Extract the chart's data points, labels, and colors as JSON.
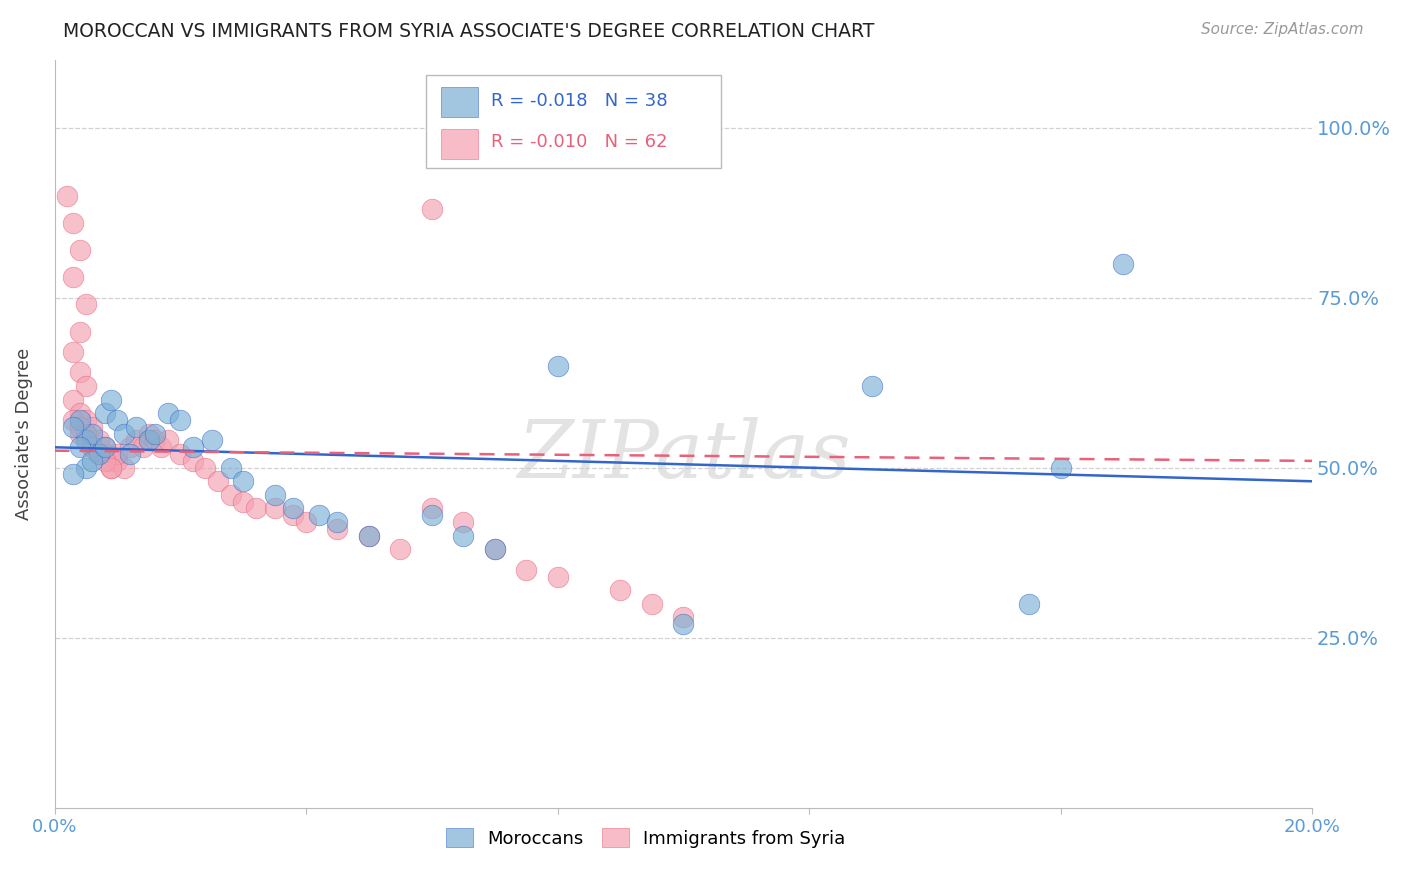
{
  "title": "MOROCCAN VS IMMIGRANTS FROM SYRIA ASSOCIATE'S DEGREE CORRELATION CHART",
  "source": "Source: ZipAtlas.com",
  "ylabel": "Associate's Degree",
  "ytick_labels": [
    "100.0%",
    "75.0%",
    "50.0%",
    "25.0%"
  ],
  "ytick_values": [
    1.0,
    0.75,
    0.5,
    0.25
  ],
  "xlim": [
    0.0,
    0.2
  ],
  "ylim": [
    0.0,
    1.1
  ],
  "watermark": "ZIPatlas",
  "legend_blue_r": "R = -0.018",
  "legend_blue_n": "N = 38",
  "legend_pink_r": "R = -0.010",
  "legend_pink_n": "N = 62",
  "blue_color": "#7BAFD4",
  "pink_color": "#F4A0B0",
  "blue_line_color": "#3366CC",
  "pink_line_color": "#E8607A",
  "grid_color": "#CCCCCC",
  "tick_label_color": "#5B9BD5",
  "blue_scatter_x": [
    0.005,
    0.006,
    0.004,
    0.007,
    0.005,
    0.003,
    0.004,
    0.006,
    0.008,
    0.003,
    0.01,
    0.009,
    0.011,
    0.008,
    0.013,
    0.015,
    0.012,
    0.018,
    0.016,
    0.02,
    0.022,
    0.025,
    0.028,
    0.03,
    0.035,
    0.038,
    0.042,
    0.045,
    0.05,
    0.06,
    0.065,
    0.07,
    0.1,
    0.155,
    0.16,
    0.17,
    0.13,
    0.08
  ],
  "blue_scatter_y": [
    0.54,
    0.55,
    0.57,
    0.52,
    0.5,
    0.56,
    0.53,
    0.51,
    0.58,
    0.49,
    0.57,
    0.6,
    0.55,
    0.53,
    0.56,
    0.54,
    0.52,
    0.58,
    0.55,
    0.57,
    0.53,
    0.54,
    0.5,
    0.48,
    0.46,
    0.44,
    0.43,
    0.42,
    0.4,
    0.43,
    0.4,
    0.38,
    0.27,
    0.3,
    0.5,
    0.8,
    0.62,
    0.65
  ],
  "pink_scatter_x": [
    0.002,
    0.003,
    0.004,
    0.003,
    0.005,
    0.004,
    0.003,
    0.004,
    0.005,
    0.003,
    0.004,
    0.005,
    0.006,
    0.005,
    0.004,
    0.006,
    0.007,
    0.006,
    0.008,
    0.007,
    0.008,
    0.009,
    0.01,
    0.009,
    0.011,
    0.01,
    0.012,
    0.013,
    0.014,
    0.015,
    0.016,
    0.017,
    0.018,
    0.02,
    0.022,
    0.024,
    0.026,
    0.028,
    0.03,
    0.032,
    0.035,
    0.038,
    0.04,
    0.045,
    0.05,
    0.055,
    0.06,
    0.065,
    0.07,
    0.075,
    0.08,
    0.09,
    0.095,
    0.1,
    0.003,
    0.004,
    0.005,
    0.006,
    0.007,
    0.008,
    0.009,
    0.06
  ],
  "pink_scatter_y": [
    0.9,
    0.86,
    0.82,
    0.78,
    0.74,
    0.7,
    0.67,
    0.64,
    0.62,
    0.6,
    0.58,
    0.57,
    0.56,
    0.55,
    0.55,
    0.54,
    0.54,
    0.53,
    0.53,
    0.52,
    0.52,
    0.51,
    0.51,
    0.5,
    0.5,
    0.52,
    0.53,
    0.54,
    0.53,
    0.55,
    0.54,
    0.53,
    0.54,
    0.52,
    0.51,
    0.5,
    0.48,
    0.46,
    0.45,
    0.44,
    0.44,
    0.43,
    0.42,
    0.41,
    0.4,
    0.38,
    0.44,
    0.42,
    0.38,
    0.35,
    0.34,
    0.32,
    0.3,
    0.28,
    0.57,
    0.56,
    0.55,
    0.53,
    0.52,
    0.51,
    0.5,
    0.88
  ],
  "blue_line_x0": 0.0,
  "blue_line_x1": 0.2,
  "blue_line_y0": 0.53,
  "blue_line_y1": 0.48,
  "pink_line_x0": 0.0,
  "pink_line_x1": 0.2,
  "pink_line_y0": 0.525,
  "pink_line_y1": 0.51
}
